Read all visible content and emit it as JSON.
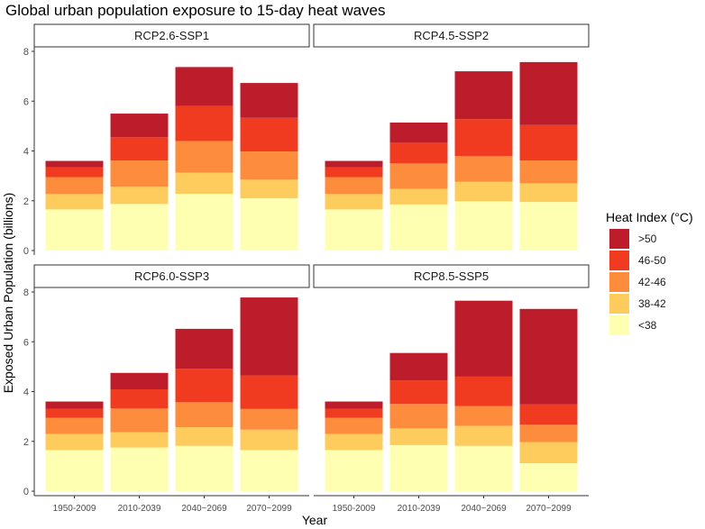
{
  "chart_data": {
    "type": "bar",
    "stacked": true,
    "title": "Global urban population exposure to 15-day heat waves",
    "xlabel": "Year",
    "ylabel": "Exposed Urban Population (billions)",
    "ylim": [
      0,
      8
    ],
    "yticks": [
      0,
      2,
      4,
      6,
      8
    ],
    "grid": false,
    "categories": [
      "1950-2009",
      "2010-2039",
      "2040~2069",
      "2070~2099"
    ],
    "legend": {
      "title": "Heat Index (°C)",
      "placement": "right",
      "entries": [
        ">50",
        "46-50",
        "42-46",
        "38-42",
        "<38"
      ]
    },
    "series_colors": {
      "<38": "#ffffb2",
      "38-42": "#fecc5c",
      "42-46": "#fd8d3c",
      "46-50": "#f03b20",
      ">50": "#bd1d2b"
    },
    "stack_order": [
      "<38",
      "38-42",
      "42-46",
      "46-50",
      ">50"
    ],
    "panels": [
      {
        "title": "RCP2.6-SSP1",
        "series": [
          {
            "name": "<38",
            "values": [
              1.65,
              1.87,
              2.28,
              2.1
            ]
          },
          {
            "name": "38-42",
            "values": [
              0.62,
              0.7,
              0.85,
              0.75
            ]
          },
          {
            "name": "42-46",
            "values": [
              0.68,
              1.05,
              1.27,
              1.13
            ]
          },
          {
            "name": "46-50",
            "values": [
              0.4,
              0.93,
              1.4,
              1.35
            ]
          },
          {
            "name": ">50",
            "values": [
              0.25,
              0.95,
              1.57,
              1.4
            ]
          }
        ]
      },
      {
        "title": "RCP4.5-SSP2",
        "series": [
          {
            "name": "<38",
            "values": [
              1.65,
              1.85,
              1.98,
              1.95
            ]
          },
          {
            "name": "38-42",
            "values": [
              0.62,
              0.63,
              0.78,
              0.75
            ]
          },
          {
            "name": "42-46",
            "values": [
              0.68,
              1.02,
              1.03,
              0.92
            ]
          },
          {
            "name": "46-50",
            "values": [
              0.4,
              0.83,
              1.49,
              1.42
            ]
          },
          {
            "name": ">50",
            "values": [
              0.25,
              0.81,
              1.92,
              2.53
            ]
          }
        ]
      },
      {
        "title": "RCP6.0-SSP3",
        "series": [
          {
            "name": "<38",
            "values": [
              1.65,
              1.75,
              1.82,
              1.65
            ]
          },
          {
            "name": "38-42",
            "values": [
              0.65,
              0.62,
              0.75,
              0.82
            ]
          },
          {
            "name": "42-46",
            "values": [
              0.65,
              0.95,
              1.0,
              0.83
            ]
          },
          {
            "name": "46-50",
            "values": [
              0.35,
              0.77,
              1.35,
              1.35
            ]
          },
          {
            "name": ">50",
            "values": [
              0.3,
              0.66,
              1.6,
              3.13
            ]
          }
        ]
      },
      {
        "title": "RCP8.5-SSP5",
        "series": [
          {
            "name": "<38",
            "values": [
              1.65,
              1.85,
              1.82,
              1.12
            ]
          },
          {
            "name": "38-42",
            "values": [
              0.65,
              0.67,
              0.8,
              0.85
            ]
          },
          {
            "name": "42-46",
            "values": [
              0.65,
              0.98,
              0.8,
              0.7
            ]
          },
          {
            "name": "46-50",
            "values": [
              0.35,
              0.95,
              1.18,
              0.82
            ]
          },
          {
            "name": ">50",
            "values": [
              0.3,
              1.1,
              3.05,
              3.83
            ]
          }
        ]
      }
    ]
  }
}
